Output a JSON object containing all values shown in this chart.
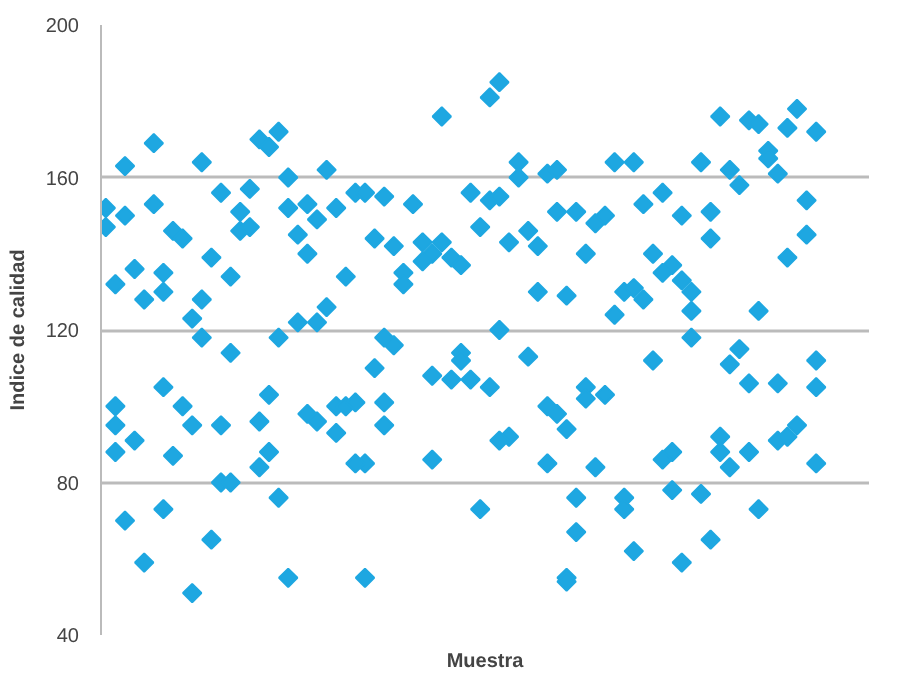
{
  "chart_data": {
    "type": "scatter",
    "xlabel": "Muestra",
    "ylabel": "Indice de calidad",
    "ylim": [
      40,
      200
    ],
    "yticks": [
      40,
      80,
      120,
      160,
      200
    ],
    "grid": "y",
    "marker": "diamond",
    "tick_labels": "y",
    "categories": [
      null,
      null,
      null,
      null,
      null,
      null,
      null,
      null,
      null,
      null,
      null,
      null,
      null,
      null,
      null,
      null,
      null,
      null,
      null,
      null,
      null,
      null,
      null,
      null,
      null,
      null,
      null,
      null,
      null,
      null,
      null,
      null,
      null,
      null,
      null,
      null,
      null,
      null,
      null,
      null,
      null,
      null,
      null,
      null,
      null,
      null,
      null,
      null,
      null,
      null,
      null,
      null,
      null,
      null,
      null,
      null,
      null,
      null,
      null,
      null,
      null,
      null,
      null,
      null,
      null,
      null,
      null,
      null,
      null,
      null,
      null,
      null,
      null,
      null,
      null,
      null,
      null,
      null,
      null,
      null
    ],
    "series": [
      {
        "color": "#1ea7e1",
        "values": [
          152,
          132,
          163,
          136,
          128,
          169,
          135,
          146,
          144,
          123,
          164,
          139,
          156,
          134,
          151,
          157,
          170,
          168,
          172,
          160,
          145,
          153,
          149,
          162,
          152,
          134,
          156,
          156,
          144,
          155,
          142,
          135,
          153,
          143,
          140,
          176,
          139,
          137,
          156,
          147,
          181,
          185,
          143,
          164,
          146,
          142,
          161,
          162,
          129,
          151,
          140,
          148,
          150,
          164,
          130,
          164,
          153,
          140,
          156,
          137,
          150,
          130,
          164,
          151,
          176,
          162,
          158,
          175,
          174,
          167,
          161,
          173,
          178,
          154,
          172,
          null,
          null,
          null,
          null,
          null
        ]
      },
      {
        "color": "#1ea7e1",
        "values": [
          147,
          100,
          150,
          91,
          59,
          153,
          130,
          87,
          100,
          95,
          128,
          65,
          95,
          114,
          146,
          147,
          96,
          103,
          118,
          152,
          122,
          140,
          122,
          126,
          100,
          100,
          101,
          85,
          110,
          118,
          116,
          132,
          null,
          138,
          108,
          143,
          107,
          114,
          107,
          73,
          154,
          155,
          92,
          160,
          113,
          130,
          100,
          151,
          94,
          76,
          105,
          84,
          103,
          124,
          76,
          131,
          128,
          112,
          135,
          88,
          133,
          125,
          77,
          144,
          92,
          111,
          115,
          106,
          125,
          165,
          106,
          139,
          95,
          145,
          112,
          null,
          null,
          null,
          null,
          null
        ]
      },
      {
        "color": "#1ea7e1",
        "values": [
          null,
          95,
          70,
          null,
          null,
          null,
          105,
          null,
          null,
          51,
          118,
          null,
          80,
          80,
          null,
          null,
          84,
          88,
          76,
          55,
          null,
          98,
          96,
          null,
          93,
          null,
          85,
          55,
          null,
          101,
          null,
          null,
          null,
          null,
          86,
          null,
          null,
          112,
          null,
          null,
          105,
          120,
          null,
          null,
          null,
          null,
          85,
          98,
          55,
          67,
          102,
          null,
          null,
          null,
          73,
          62,
          null,
          null,
          86,
          78,
          59,
          118,
          null,
          65,
          88,
          84,
          null,
          88,
          73,
          null,
          91,
          92,
          null,
          null,
          105,
          null,
          null,
          null,
          null,
          null
        ]
      },
      {
        "color": "#1ea7e1",
        "values": [
          null,
          88,
          null,
          null,
          null,
          null,
          73,
          null,
          null,
          null,
          null,
          null,
          null,
          null,
          null,
          null,
          null,
          null,
          null,
          null,
          null,
          null,
          null,
          null,
          null,
          null,
          null,
          null,
          null,
          95,
          null,
          null,
          null,
          null,
          null,
          null,
          null,
          null,
          null,
          null,
          null,
          91,
          null,
          null,
          null,
          null,
          null,
          null,
          54,
          null,
          null,
          null,
          null,
          null,
          null,
          null,
          null,
          null,
          null,
          null,
          null,
          null,
          null,
          null,
          null,
          null,
          null,
          null,
          null,
          null,
          null,
          null,
          null,
          null,
          85,
          null,
          null,
          null,
          null,
          null
        ]
      }
    ]
  }
}
